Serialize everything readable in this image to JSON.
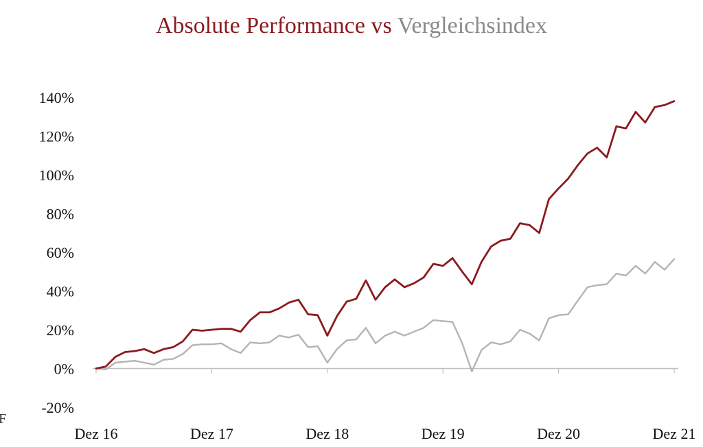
{
  "title": {
    "fund_label": "Absolute Performance",
    "separator": " vs ",
    "benchmark_label": "Vergleichsindex"
  },
  "edge_text": "F",
  "colors": {
    "fund": "#8b1a1f",
    "benchmark": "#b4b4b4",
    "axis": "#bfbfbf"
  },
  "chart_data": {
    "type": "line",
    "title": "Absolute Performance vs Vergleichsindex",
    "xlabel": "",
    "ylabel": "",
    "ylim": [
      -20,
      140
    ],
    "yticks": [
      -20,
      0,
      20,
      40,
      60,
      80,
      100,
      120,
      140
    ],
    "ytick_labels": [
      "-20%",
      "0%",
      "20%",
      "40%",
      "60%",
      "80%",
      "100%",
      "120%",
      "140%"
    ],
    "xlim": [
      0,
      60
    ],
    "xticks": [
      0,
      12,
      24,
      36,
      48,
      60
    ],
    "xtick_labels": [
      "Dez 16",
      "Dez 17",
      "Dez 18",
      "Dez 19",
      "Dez 20",
      "Dez 21"
    ],
    "x_unit": "months since Dez 16",
    "grid": false,
    "legend": "none",
    "series": [
      {
        "name": "Absolute Performance",
        "color": "#8b1a1f",
        "values": [
          0,
          1,
          6,
          8.5,
          9,
          10,
          8,
          10,
          11,
          14,
          20,
          19.5,
          20,
          20.5,
          20.5,
          19,
          25,
          29,
          29,
          31,
          34,
          35.5,
          28,
          27.5,
          17,
          27,
          34.5,
          36,
          45.5,
          35.5,
          42,
          46,
          42,
          44,
          47,
          54,
          53,
          57,
          50,
          43.5,
          55,
          63,
          66,
          67,
          75,
          74,
          70,
          87.5,
          93,
          98,
          105,
          111,
          114,
          109,
          125,
          124,
          132.5,
          127,
          135,
          136,
          138
        ]
      },
      {
        "name": "Vergleichsindex",
        "color": "#b4b4b4",
        "values": [
          0,
          -0.5,
          3,
          3.5,
          4,
          3,
          2,
          4.5,
          5,
          7.5,
          12,
          12.5,
          12.5,
          13,
          10,
          8,
          13.5,
          13,
          13.5,
          17,
          16,
          17.5,
          11,
          11.5,
          3,
          10,
          14.5,
          15,
          21,
          13,
          17,
          19,
          17,
          19,
          21,
          25,
          24.5,
          24,
          13,
          -1.5,
          9.5,
          13.5,
          12.5,
          14,
          20,
          18,
          14.5,
          26,
          27.5,
          28,
          35,
          42,
          43,
          43.5,
          49,
          48,
          53,
          49,
          55,
          51,
          56.5
        ]
      }
    ]
  }
}
